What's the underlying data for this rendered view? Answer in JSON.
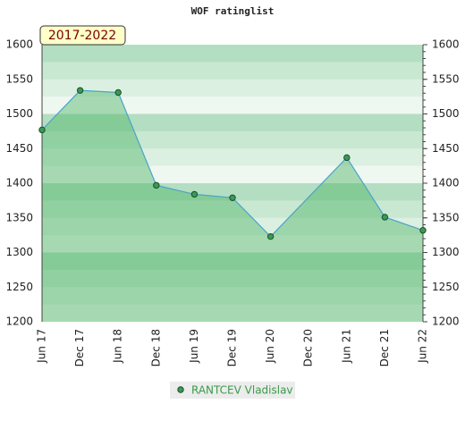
{
  "chart_data": {
    "type": "line",
    "title": "WOF ratinglist",
    "subtitle": "2017-2022",
    "categories": [
      "Jun 17",
      "Dec 17",
      "Jun 18",
      "Dec 18",
      "Jun 19",
      "Dec 19",
      "Jun 20",
      "Dec 20",
      "Jun 21",
      "Dec 21",
      "Jun 22"
    ],
    "series": [
      {
        "name": "RANTCEV Vladislav",
        "color": "#4aa3c8",
        "x": [
          "Jun 17",
          "Dec 17",
          "Jun 18",
          "Dec 18",
          "Jun 19",
          "Dec 19",
          "Jun 20",
          "Jun 21",
          "Dec 21",
          "Jun 22"
        ],
        "values": [
          1477,
          1534,
          1531,
          1397,
          1384,
          1379,
          1323,
          1437,
          1351,
          1332
        ]
      }
    ],
    "ylim": [
      1200,
      1600
    ],
    "yticks": [
      1200,
      1250,
      1300,
      1350,
      1400,
      1450,
      1500,
      1550,
      1600
    ],
    "legend": "bottom"
  }
}
